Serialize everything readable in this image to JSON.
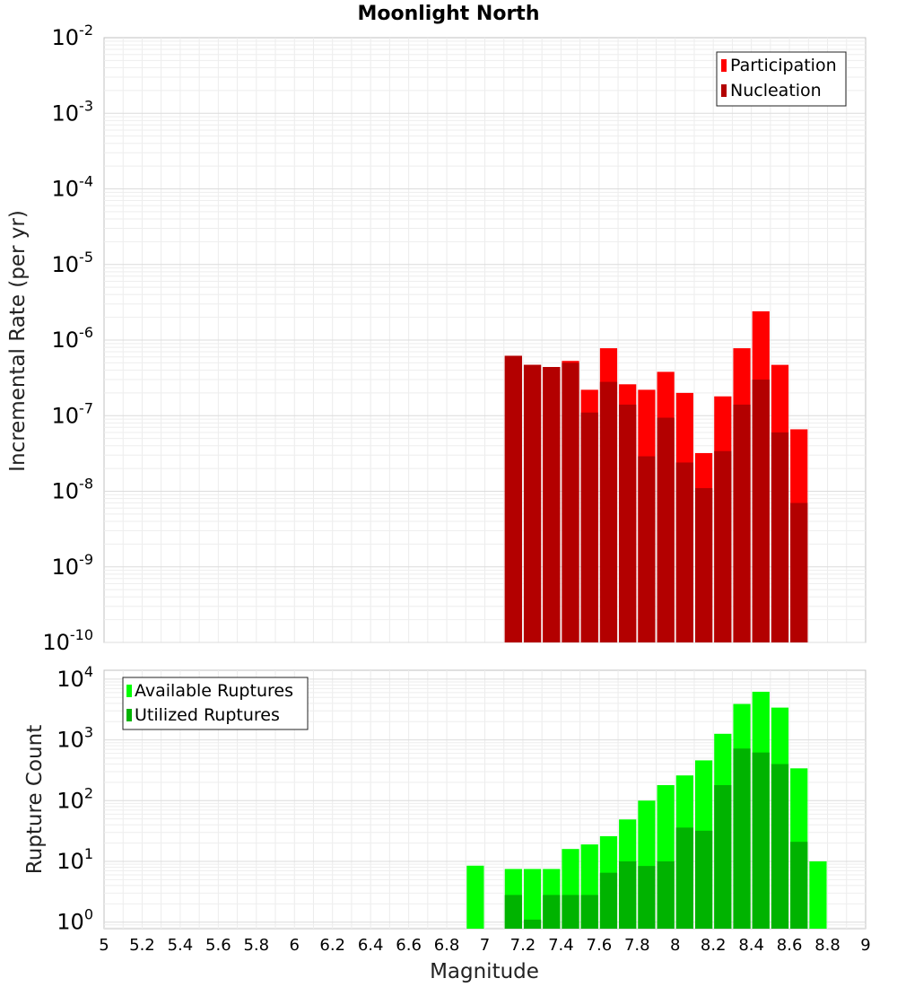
{
  "chart_data": [
    {
      "type": "bar",
      "title": "Moonlight North",
      "ylabel": "Incremental Rate (per yr)",
      "xlabel": "",
      "yscale": "log",
      "ylim": [
        1e-10,
        0.01
      ],
      "xlim": [
        5,
        9
      ],
      "grid": true,
      "legend_position": "top-right",
      "x": [
        7.15,
        7.25,
        7.35,
        7.45,
        7.55,
        7.65,
        7.75,
        7.85,
        7.95,
        8.05,
        8.15,
        8.25,
        8.35,
        8.45,
        8.55,
        8.65
      ],
      "series": [
        {
          "name": "Participation",
          "color": "#ff0000",
          "values": [
            6.2e-07,
            4.7e-07,
            4.4e-07,
            5.3e-07,
            2.2e-07,
            7.8e-07,
            2.6e-07,
            2.2e-07,
            3.8e-07,
            2e-07,
            3.2e-08,
            1.8e-07,
            7.8e-07,
            2.4e-06,
            4.7e-07,
            6.6e-08
          ]
        },
        {
          "name": "Nucleation",
          "color": "#b30000",
          "values": [
            6.2e-07,
            4.7e-07,
            4.4e-07,
            5e-07,
            1.1e-07,
            2.8e-07,
            1.4e-07,
            2.9e-08,
            9.4e-08,
            2.4e-08,
            1.1e-08,
            3.4e-08,
            1.4e-07,
            3e-07,
            6e-08,
            7e-09
          ]
        }
      ],
      "yticks": [
        {
          "value": 0.01,
          "base": "10",
          "exp": "-2"
        },
        {
          "value": 0.001,
          "base": "10",
          "exp": "-3"
        },
        {
          "value": 0.0001,
          "base": "10",
          "exp": "-4"
        },
        {
          "value": 1e-05,
          "base": "10",
          "exp": "-5"
        },
        {
          "value": 1e-06,
          "base": "10",
          "exp": "-6"
        },
        {
          "value": 1e-07,
          "base": "10",
          "exp": "-7"
        },
        {
          "value": 1e-08,
          "base": "10",
          "exp": "-8"
        },
        {
          "value": 1e-09,
          "base": "10",
          "exp": "-9"
        },
        {
          "value": 1e-10,
          "base": "10",
          "exp": "-10"
        }
      ]
    },
    {
      "type": "bar",
      "title": "",
      "ylabel": "Rupture Count",
      "xlabel": "Magnitude",
      "yscale": "log",
      "ylim": [
        0.78,
        14000
      ],
      "xlim": [
        5,
        9
      ],
      "grid": true,
      "legend_position": "top-left",
      "x": [
        6.95,
        7.15,
        7.25,
        7.35,
        7.45,
        7.55,
        7.65,
        7.75,
        7.85,
        7.95,
        8.05,
        8.15,
        8.25,
        8.35,
        8.45,
        8.55,
        8.65,
        8.75
      ],
      "series": [
        {
          "name": "Available Ruptures",
          "color": "#00ff00",
          "values": [
            8.5,
            7.5,
            7.5,
            7.5,
            16,
            19,
            26,
            49,
            100,
            180,
            260,
            460,
            1260,
            3900,
            6200,
            3400,
            340,
            10
          ]
        },
        {
          "name": "Utilized Ruptures",
          "color": "#00b300",
          "values": [
            0,
            2.8,
            1.1,
            2.8,
            2.8,
            2.8,
            6.5,
            10,
            8.4,
            10,
            36,
            32,
            180,
            720,
            620,
            400,
            21,
            0
          ]
        }
      ],
      "yticks": [
        {
          "value": 10000,
          "base": "10",
          "exp": "4"
        },
        {
          "value": 1000,
          "base": "10",
          "exp": "3"
        },
        {
          "value": 100,
          "base": "10",
          "exp": "2"
        },
        {
          "value": 10,
          "base": "10",
          "exp": "1"
        },
        {
          "value": 1,
          "base": "10",
          "exp": "0"
        }
      ],
      "xticks": [
        "5",
        "5.2",
        "5.4",
        "5.6",
        "5.8",
        "6",
        "6.2",
        "6.4",
        "6.6",
        "6.8",
        "7",
        "7.2",
        "7.4",
        "7.6",
        "7.8",
        "8",
        "8.2",
        "8.4",
        "8.6",
        "8.8",
        "9"
      ]
    }
  ]
}
